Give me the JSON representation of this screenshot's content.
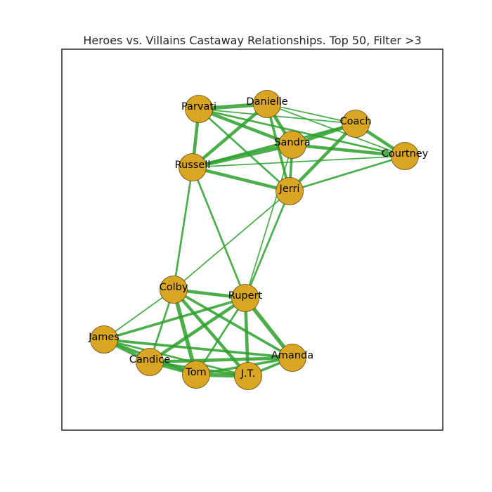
{
  "title": "Heroes vs. Villains Castaway Relationships. Top 50, Filter >3",
  "colors": {
    "node_fill": "#daa520",
    "node_stroke": "#5a4a1a",
    "edge": "#2ca02c",
    "frame": "#333333",
    "background": "#ffffff"
  },
  "nodes": [
    {
      "id": "parvati",
      "label": "Parvati"
    },
    {
      "id": "danielle",
      "label": "Danielle"
    },
    {
      "id": "coach",
      "label": "Coach"
    },
    {
      "id": "sandra",
      "label": "Sandra"
    },
    {
      "id": "courtney",
      "label": "Courtney"
    },
    {
      "id": "russell",
      "label": "Russell"
    },
    {
      "id": "jerri",
      "label": "Jerri"
    },
    {
      "id": "colby",
      "label": "Colby"
    },
    {
      "id": "rupert",
      "label": "Rupert"
    },
    {
      "id": "james",
      "label": "James"
    },
    {
      "id": "candice",
      "label": "Candice"
    },
    {
      "id": "tom",
      "label": "Tom"
    },
    {
      "id": "jt",
      "label": "J.T."
    },
    {
      "id": "amanda",
      "label": "Amanda"
    }
  ],
  "edges": [
    {
      "source": "parvati",
      "target": "danielle",
      "weight": 5
    },
    {
      "source": "parvati",
      "target": "sandra",
      "weight": 4
    },
    {
      "source": "parvati",
      "target": "russell",
      "weight": 4
    },
    {
      "source": "parvati",
      "target": "jerri",
      "weight": 2
    },
    {
      "source": "parvati",
      "target": "coach",
      "weight": 1
    },
    {
      "source": "parvati",
      "target": "courtney",
      "weight": 2
    },
    {
      "source": "danielle",
      "target": "coach",
      "weight": 1
    },
    {
      "source": "danielle",
      "target": "sandra",
      "weight": 4
    },
    {
      "source": "danielle",
      "target": "russell",
      "weight": 4
    },
    {
      "source": "danielle",
      "target": "jerri",
      "weight": 3
    },
    {
      "source": "danielle",
      "target": "courtney",
      "weight": 1
    },
    {
      "source": "coach",
      "target": "sandra",
      "weight": 4
    },
    {
      "source": "coach",
      "target": "courtney",
      "weight": 4
    },
    {
      "source": "coach",
      "target": "jerri",
      "weight": 4
    },
    {
      "source": "coach",
      "target": "russell",
      "weight": 3
    },
    {
      "source": "sandra",
      "target": "courtney",
      "weight": 4
    },
    {
      "source": "sandra",
      "target": "russell",
      "weight": 5
    },
    {
      "source": "sandra",
      "target": "jerri",
      "weight": 3
    },
    {
      "source": "russell",
      "target": "jerri",
      "weight": 4
    },
    {
      "source": "russell",
      "target": "courtney",
      "weight": 1
    },
    {
      "source": "jerri",
      "target": "courtney",
      "weight": 2
    },
    {
      "source": "russell",
      "target": "colby",
      "weight": 2
    },
    {
      "source": "russell",
      "target": "rupert",
      "weight": 2
    },
    {
      "source": "jerri",
      "target": "rupert",
      "weight": 2
    },
    {
      "source": "jerri",
      "target": "colby",
      "weight": 1
    },
    {
      "source": "sandra",
      "target": "rupert",
      "weight": 1
    },
    {
      "source": "colby",
      "target": "rupert",
      "weight": 4
    },
    {
      "source": "colby",
      "target": "james",
      "weight": 1
    },
    {
      "source": "colby",
      "target": "candice",
      "weight": 2
    },
    {
      "source": "colby",
      "target": "tom",
      "weight": 5
    },
    {
      "source": "colby",
      "target": "jt",
      "weight": 4
    },
    {
      "source": "colby",
      "target": "amanda",
      "weight": 3
    },
    {
      "source": "rupert",
      "target": "james",
      "weight": 3
    },
    {
      "source": "rupert",
      "target": "candice",
      "weight": 4
    },
    {
      "source": "rupert",
      "target": "tom",
      "weight": 2
    },
    {
      "source": "rupert",
      "target": "jt",
      "weight": 4
    },
    {
      "source": "rupert",
      "target": "amanda",
      "weight": 5
    },
    {
      "source": "james",
      "target": "candice",
      "weight": 4
    },
    {
      "source": "james",
      "target": "tom",
      "weight": 3
    },
    {
      "source": "james",
      "target": "jt",
      "weight": 2
    },
    {
      "source": "james",
      "target": "amanda",
      "weight": 3
    },
    {
      "source": "candice",
      "target": "tom",
      "weight": 4
    },
    {
      "source": "candice",
      "target": "jt",
      "weight": 3
    },
    {
      "source": "candice",
      "target": "amanda",
      "weight": 4
    },
    {
      "source": "tom",
      "target": "jt",
      "weight": 5
    },
    {
      "source": "tom",
      "target": "amanda",
      "weight": 3
    },
    {
      "source": "jt",
      "target": "amanda",
      "weight": 3
    }
  ]
}
